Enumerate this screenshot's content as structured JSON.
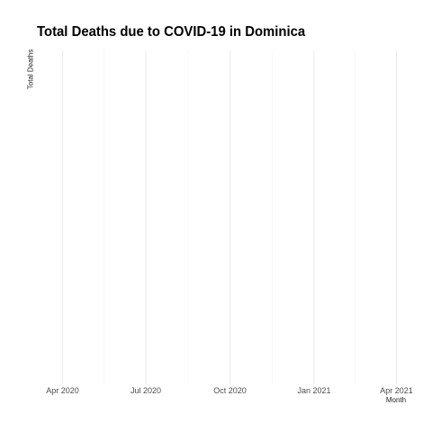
{
  "chart_data": {
    "type": "line",
    "title": "Total Deaths due to COVID-19 in Dominica",
    "xlabel": "Month",
    "ylabel": "Total Deaths",
    "x_ticks": [
      "Apr 2020",
      "Jul 2020",
      "Oct 2020",
      "Jan 2021",
      "Apr 2021"
    ],
    "x_tick_dates": [
      "2020-04-01",
      "2020-07-01",
      "2020-10-01",
      "2021-01-01",
      "2021-04-01"
    ],
    "xlim": [
      "2020-03-01",
      "2021-04-01"
    ],
    "series": [
      {
        "x": [],
        "y": []
      }
    ],
    "grid": true,
    "gridline_color": "#ebebeb"
  }
}
